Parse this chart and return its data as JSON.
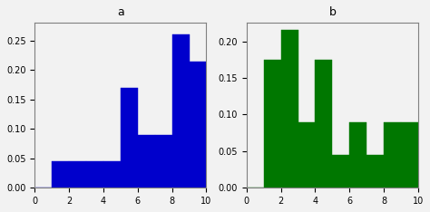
{
  "title_a": "a",
  "title_b": "b",
  "bins_left": [
    0,
    1,
    2,
    3,
    4,
    5,
    6,
    7,
    8,
    9
  ],
  "heights_a": [
    0.0,
    0.045,
    0.045,
    0.045,
    0.045,
    0.17,
    0.09,
    0.09,
    0.26,
    0.215
  ],
  "heights_b": [
    0.0,
    0.175,
    0.215,
    0.09,
    0.175,
    0.045,
    0.09,
    0.045,
    0.09,
    0.09
  ],
  "color_a": "#0000cc",
  "color_b": "#007700",
  "xlim": [
    0,
    10
  ],
  "ylim_a": [
    0,
    0.28
  ],
  "ylim_b": [
    0,
    0.225
  ],
  "yticks_a": [
    0.0,
    0.05,
    0.1,
    0.15,
    0.2,
    0.25
  ],
  "yticks_b": [
    0.0,
    0.05,
    0.1,
    0.15,
    0.2
  ],
  "xticks": [
    0,
    2,
    4,
    6,
    8,
    10
  ],
  "figsize": [
    4.74,
    2.34
  ],
  "dpi": 100,
  "bg_color": "#f2f2f2",
  "title_fontsize": 9
}
